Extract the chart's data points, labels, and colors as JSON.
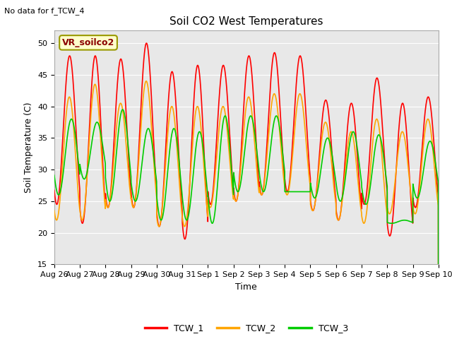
{
  "title": "Soil CO2 West Temperatures",
  "xlabel": "Time",
  "ylabel": "Soil Temperature (C)",
  "no_data_text": "No data for f_TCW_4",
  "annotation_text": "VR_soilco2",
  "ylim": [
    15,
    52
  ],
  "yticks": [
    15,
    20,
    25,
    30,
    35,
    40,
    45,
    50
  ],
  "x_labels": [
    "Aug 26",
    "Aug 27",
    "Aug 28",
    "Aug 29",
    "Aug 30",
    "Aug 31",
    "Sep 1",
    "Sep 2",
    "Sep 3",
    "Sep 4",
    "Sep 5",
    "Sep 6",
    "Sep 7",
    "Sep 8",
    "Sep 9",
    "Sep 10"
  ],
  "colors": {
    "TCW_1": "#FF0000",
    "TCW_2": "#FFA500",
    "TCW_3": "#00CC00"
  },
  "bg_color": "#E8E8E8",
  "num_days": 15,
  "peaks_1": [
    48,
    48,
    47.5,
    50,
    45.5,
    46.5,
    46.5,
    48,
    48.5,
    48,
    41,
    40.5,
    44.5,
    40.5,
    41.5
  ],
  "mins_1": [
    24.5,
    21.5,
    24,
    24,
    21,
    19,
    24.5,
    25,
    26,
    26.5,
    23.5,
    22,
    24.5,
    19.5,
    24
  ],
  "peaks_2": [
    41.5,
    43.5,
    40.5,
    44,
    40,
    40,
    40,
    41.5,
    42,
    42,
    37.5,
    36,
    38,
    36,
    38
  ],
  "mins_2": [
    22,
    22,
    24,
    24,
    21,
    21,
    24,
    25,
    26,
    26,
    23.5,
    22,
    21.5,
    23,
    23
  ],
  "peaks_3": [
    38,
    37.5,
    39.5,
    36.5,
    36.5,
    36,
    38.5,
    38.5,
    38.5,
    26.5,
    35,
    36,
    35.5,
    22,
    34.5
  ],
  "mins_3": [
    26,
    28.5,
    25,
    25,
    22,
    22,
    21.5,
    26.5,
    26.5,
    26.5,
    25.5,
    25,
    24.5,
    21.5,
    25.5
  ],
  "phase_1": 0.0,
  "phase_2": 0.01,
  "phase_3": -0.07,
  "linewidth": 1.2,
  "title_fontsize": 11,
  "label_fontsize": 8,
  "legend_fontsize": 9
}
